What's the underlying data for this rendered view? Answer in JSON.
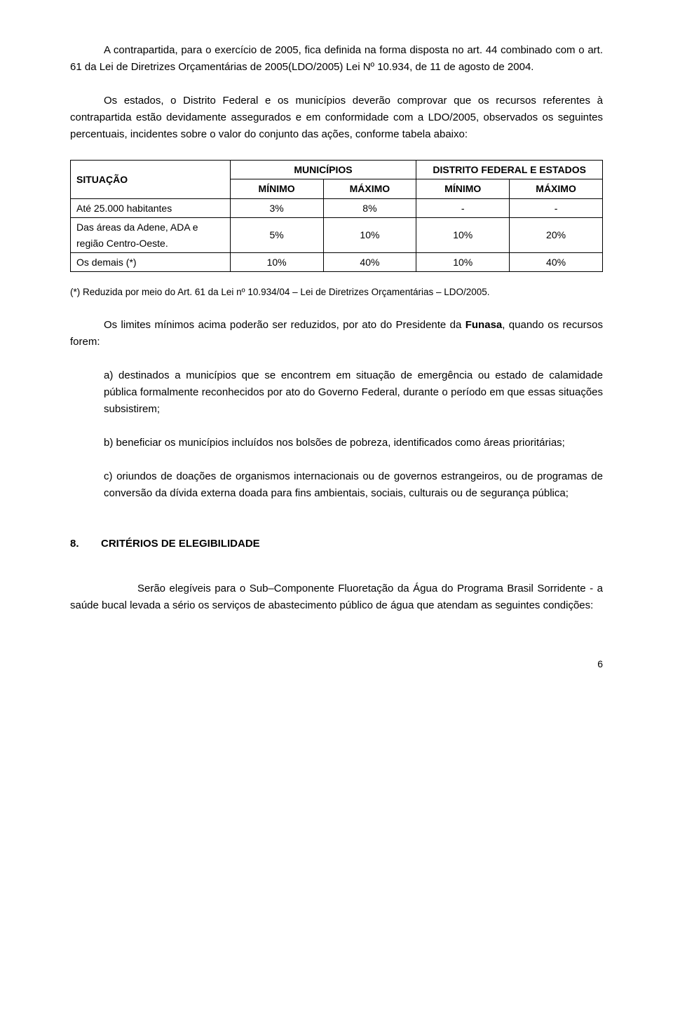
{
  "p1": "A contrapartida, para o exercício de 2005, fica definida na forma disposta no art. 44 combinado com o art. 61 da Lei de Diretrizes Orçamentárias de 2005(LDO/2005) Lei Nº 10.934, de 11 de agosto de 2004.",
  "p2": "Os estados, o Distrito Federal e os municípios deverão comprovar que os recursos referentes à contrapartida estão devidamente assegurados e em conformidade com a LDO/2005, observados os seguintes percentuais, incidentes sobre o valor do conjunto das ações, conforme tabela abaixo:",
  "table": {
    "head": {
      "situacao": "SITUAÇÃO",
      "municipios": "MUNICÍPIOS",
      "df_estados": "DISTRITO FEDERAL E ESTADOS",
      "minimo": "MÍNIMO",
      "maximo": "MÁXIMO"
    },
    "rows": [
      {
        "sit": "Até 25.000 habitantes",
        "m_min": "3%",
        "m_max": "8%",
        "d_min": "-",
        "d_max": "-"
      },
      {
        "sit": "Das áreas da Adene, ADA e região Centro-Oeste.",
        "m_min": "5%",
        "m_max": "10%",
        "d_min": "10%",
        "d_max": "20%"
      },
      {
        "sit": "Os demais (*)",
        "m_min": "10%",
        "m_max": "40%",
        "d_min": "10%",
        "d_max": "40%"
      }
    ]
  },
  "footnote": "(*) Reduzida por meio do Art. 61 da Lei nº 10.934/04 – Lei de Diretrizes Orçamentárias – LDO/2005.",
  "p3_a": "Os limites mínimos acima poderão ser reduzidos, por ato do Presidente da ",
  "p3_bold": "Funasa",
  "p3_b": ", quando os recursos forem:",
  "li_a": "a) destinados a municípios que se encontrem em situação de emergência ou estado de calamidade pública formalmente reconhecidos por ato do Governo Federal, durante o período em que essas situações subsistirem;",
  "li_b": "b) beneficiar os municípios incluídos nos bolsões de pobreza, identificados como áreas prioritárias;",
  "li_c": "c) oriundos de doações de organismos internacionais ou de governos estrangeiros, ou de programas de conversão da dívida externa doada para fins ambientais, sociais, culturais ou de segurança pública;",
  "sec_num": "8.",
  "sec_title": "CRITÉRIOS DE ELEGIBILIDADE",
  "p4": "Serão elegíveis para o Sub–Componente Fluoretação da Água do Programa Brasil Sorridente  - a saúde bucal levada a sério os serviços de abastecimento público de água que atendam as seguintes condições:",
  "page": "6"
}
